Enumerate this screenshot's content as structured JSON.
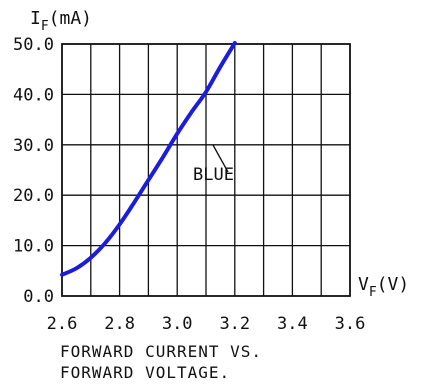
{
  "chart_data": {
    "type": "line",
    "ylabel_main": "I",
    "ylabel_sub": "F",
    "ylabel_unit": "(mA)",
    "xlabel_main": "V",
    "xlabel_sub": "F",
    "xlabel_unit": "(V)",
    "xlim": [
      2.6,
      3.6
    ],
    "ylim": [
      0,
      50
    ],
    "x_ticks": [
      "2.6",
      "2.8",
      "3.0",
      "3.2",
      "3.4",
      "3.6"
    ],
    "y_ticks": [
      "0.0",
      "10.0",
      "20.0",
      "30.0",
      "40.0",
      "50.0"
    ],
    "grid": true,
    "series": [
      {
        "name": "BLUE",
        "color": "#1c1cdc",
        "x": [
          2.6,
          2.65,
          2.7,
          2.75,
          2.8,
          2.85,
          2.9,
          2.95,
          3.0,
          3.05,
          3.1,
          3.15,
          3.2
        ],
        "y": [
          4.2,
          5.5,
          7.6,
          10.5,
          14.2,
          18.5,
          23.0,
          27.5,
          32.2,
          36.5,
          40.5,
          45.5,
          50.2
        ]
      }
    ],
    "caption_line1": "FORWARD CURRENT VS.",
    "caption_line2": "FORWARD VOLTAGE."
  }
}
